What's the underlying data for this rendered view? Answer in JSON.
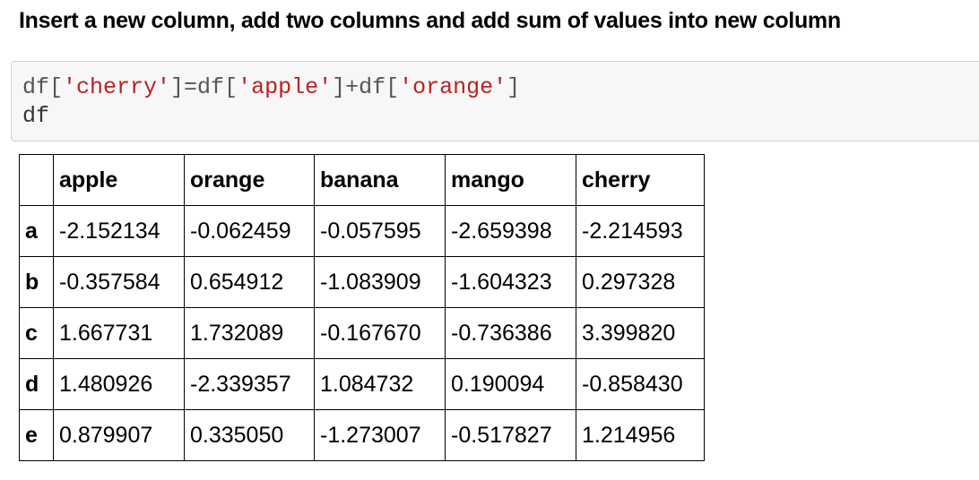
{
  "heading": "Insert a new column, add two columns and add sum of values into new column",
  "code": {
    "line1": {
      "p1": "df[",
      "s1": "'cherry'",
      "p2": "]=df[",
      "s2": "'apple'",
      "p3": "]+df[",
      "s3": "'orange'",
      "p4": "]"
    },
    "line2": "df"
  },
  "table": {
    "columns": [
      "apple",
      "orange",
      "banana",
      "mango",
      "cherry"
    ],
    "rows": [
      {
        "index": "a",
        "values": [
          "-2.152134",
          "-0.062459",
          "-0.057595",
          "-2.659398",
          "-2.214593"
        ]
      },
      {
        "index": "b",
        "values": [
          "-0.357584",
          "0.654912",
          "-1.083909",
          "-1.604323",
          "0.297328"
        ]
      },
      {
        "index": "c",
        "values": [
          "1.667731",
          "1.732089",
          "-0.167670",
          "-0.736386",
          "3.399820"
        ]
      },
      {
        "index": "d",
        "values": [
          "1.480926",
          "-2.339357",
          "1.084732",
          "0.190094",
          "-0.858430"
        ]
      },
      {
        "index": "e",
        "values": [
          "0.879907",
          "0.335050",
          "-1.273007",
          "-0.517827",
          "1.214956"
        ]
      }
    ]
  },
  "colors": {
    "string_literal": "#ba2121",
    "code_background": "#f7f7f7"
  }
}
